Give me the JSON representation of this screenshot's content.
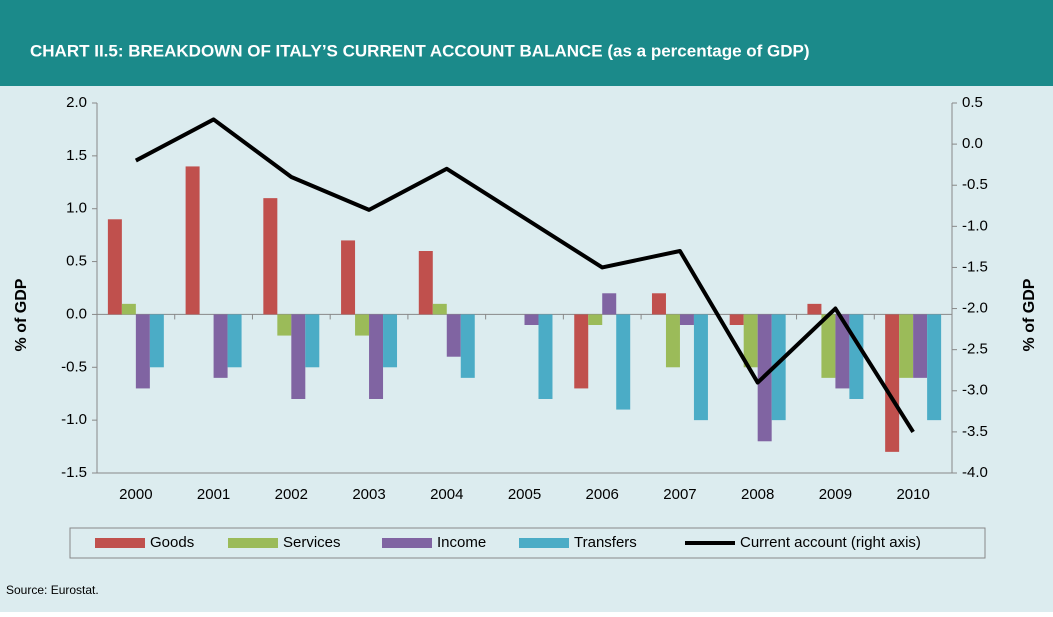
{
  "chart_data": {
    "type": "bar",
    "title": "CHART II.5: BREAKDOWN OF ITALY’S CURRENT ACCOUNT BALANCE (as a percentage of GDP)",
    "ylabel": "% of GDP",
    "y2label": "% of GDP",
    "source": "Source: Eurostat.",
    "categories": [
      "2000",
      "2001",
      "2002",
      "2003",
      "2004",
      "2005",
      "2006",
      "2007",
      "2008",
      "2009",
      "2010"
    ],
    "series": [
      {
        "name": "Goods",
        "color": "#c0504d",
        "values": [
          0.9,
          1.4,
          1.1,
          0.7,
          0.6,
          0,
          -0.7,
          0.2,
          -0.1,
          0.1,
          -1.3
        ]
      },
      {
        "name": "Services",
        "color": "#9bbb59",
        "values": [
          0.1,
          0,
          -0.2,
          -0.2,
          0.1,
          0,
          -0.1,
          -0.5,
          -0.5,
          -0.6,
          -0.6
        ]
      },
      {
        "name": "Income",
        "color": "#8064a2",
        "values": [
          -0.7,
          -0.6,
          -0.8,
          -0.8,
          -0.4,
          -0.1,
          0.2,
          -0.1,
          -1.2,
          -0.7,
          -0.6
        ]
      },
      {
        "name": "Transfers",
        "color": "#4bacc6",
        "values": [
          -0.5,
          -0.5,
          -0.5,
          -0.5,
          -0.6,
          -0.8,
          -0.9,
          -1.0,
          -1.0,
          -0.8,
          -1.0
        ]
      },
      {
        "name": "Current account (right axis)",
        "color": "#000000",
        "type": "line",
        "axis": "y2",
        "values": [
          -0.2,
          0.3,
          -0.4,
          -0.8,
          -0.3,
          -0.9,
          -1.5,
          -1.3,
          -2.9,
          -2.0,
          -3.5
        ]
      }
    ],
    "ylim": [
      -1.5,
      2.0
    ],
    "yticks": [
      {
        "value": 2.0,
        "label": "2.0"
      },
      {
        "value": 1.5,
        "label": "1.5"
      },
      {
        "value": 1.0,
        "label": "1.0"
      },
      {
        "value": 0.5,
        "label": "0.5"
      },
      {
        "value": 0,
        "label": "0.0"
      },
      {
        "value": -0.5,
        "label": "-0.5"
      },
      {
        "value": -1.0,
        "label": "-1.0"
      },
      {
        "value": -1.5,
        "label": "-1.5"
      }
    ],
    "y2lim": [
      -4.0,
      0.5
    ],
    "y2ticks": [
      {
        "value": 0.5,
        "label": "0.5"
      },
      {
        "value": 0,
        "label": "0.0"
      },
      {
        "value": -0.5,
        "label": "-0.5"
      },
      {
        "value": -1.0,
        "label": "-1.0"
      },
      {
        "value": -1.5,
        "label": "-1.5"
      },
      {
        "value": -2.0,
        "label": "-2.0"
      },
      {
        "value": -2.5,
        "label": "-2.5"
      },
      {
        "value": -3.0,
        "label": "-3.0"
      },
      {
        "value": -3.5,
        "label": "-3.5"
      },
      {
        "value": -4.0,
        "label": "-4.0"
      }
    ],
    "grid": false,
    "legend": "bottom"
  }
}
